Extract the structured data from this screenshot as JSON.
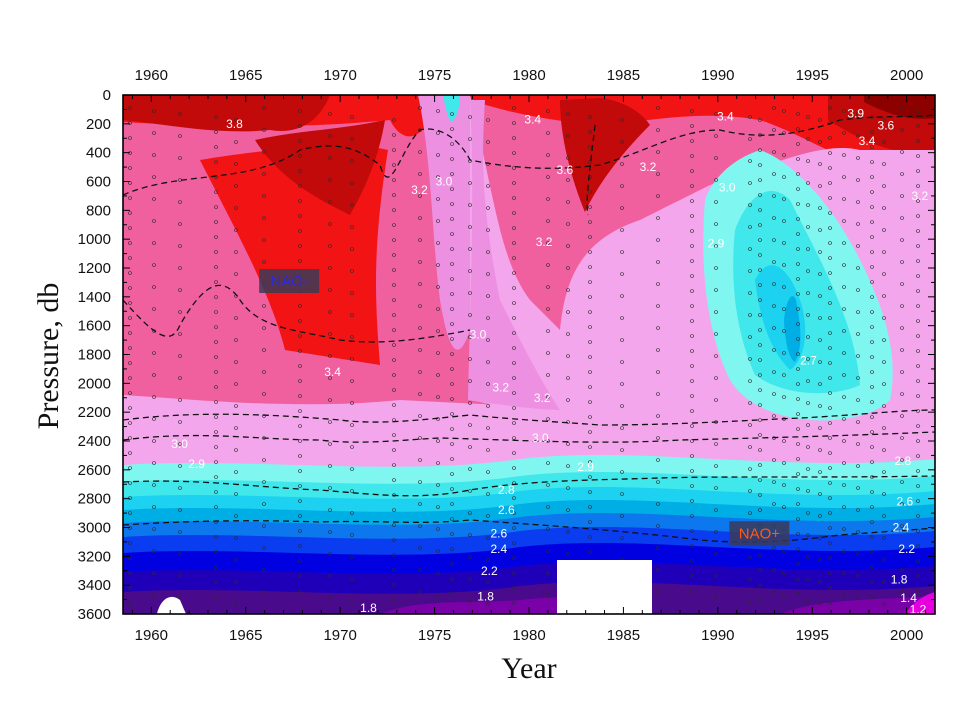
{
  "chart_data": {
    "type": "heatmap",
    "title": "",
    "xlabel": "Year",
    "ylabel": "Pressure, db",
    "xlim": [
      1958.5,
      2001.5
    ],
    "ylim": [
      0,
      3600
    ],
    "y_inverted": true,
    "x_ticks_major": [
      1960,
      1965,
      1970,
      1975,
      1980,
      1985,
      1990,
      1995,
      2000
    ],
    "x_tick_labels": [
      "1960",
      "1965",
      "1970",
      "1975",
      "1980",
      "1985",
      "1990",
      "1995",
      "2000"
    ],
    "y_ticks": [
      0,
      200,
      400,
      600,
      800,
      1000,
      1200,
      1400,
      1600,
      1800,
      2000,
      2200,
      2400,
      2600,
      2800,
      3000,
      3200,
      3400,
      3600
    ],
    "y_tick_labels": [
      "0",
      "200",
      "400",
      "600",
      "800",
      "1000",
      "1200",
      "1400",
      "1600",
      "1800",
      "2000",
      "2200",
      "2400",
      "2600",
      "2800",
      "3000",
      "3200",
      "3400",
      "3600"
    ],
    "grid": false,
    "band_colors": {
      "c18": "#4a0a8c",
      "c20": "#1f00b8",
      "c22": "#0000e0",
      "c24": "#0a3cf0",
      "c25": "#0d78ee",
      "c26": "#00aee6",
      "c27": "#1cd2f0",
      "c28": "#40e8ec",
      "c29": "#80f6f0",
      "c30": "#f4a6ec",
      "c31": "#ee90e2",
      "c32": "#f0609e",
      "c34": "#f21414",
      "c36": "#c20a0a",
      "c38": "#8c0000"
    },
    "contour_levels": [
      1.8,
      2.0,
      2.2,
      2.4,
      2.5,
      2.6,
      2.7,
      2.8,
      2.9,
      3.0,
      3.1,
      3.2,
      3.4,
      3.6,
      3.8
    ],
    "contour_labels": [
      {
        "text": "3.8",
        "x": 1964.4,
        "y": 200
      },
      {
        "text": "3.4",
        "x": 1969.6,
        "y": 1920
      },
      {
        "text": "3.2",
        "x": 1974.2,
        "y": 660
      },
      {
        "text": "3.0",
        "x": 1975.5,
        "y": 600
      },
      {
        "text": "3.0",
        "x": 1961.5,
        "y": 2420
      },
      {
        "text": "2.9",
        "x": 1962.4,
        "y": 2560
      },
      {
        "text": "3.2",
        "x": 1978.5,
        "y": 2030
      },
      {
        "text": "3.0",
        "x": 1977.3,
        "y": 1660
      },
      {
        "text": "3.2",
        "x": 1980.7,
        "y": 2100
      },
      {
        "text": "3.0",
        "x": 1980.6,
        "y": 2380
      },
      {
        "text": "3.2",
        "x": 1980.8,
        "y": 1020
      },
      {
        "text": "3.6",
        "x": 1981.9,
        "y": 520
      },
      {
        "text": "3.4",
        "x": 1980.2,
        "y": 170
      },
      {
        "text": "3.2",
        "x": 1986.3,
        "y": 500
      },
      {
        "text": "2.9",
        "x": 1983.0,
        "y": 2580
      },
      {
        "text": "2.8",
        "x": 1978.8,
        "y": 2740
      },
      {
        "text": "2.6",
        "x": 1978.8,
        "y": 2880
      },
      {
        "text": "2.6",
        "x": 1978.4,
        "y": 3040
      },
      {
        "text": "2.4",
        "x": 1978.4,
        "y": 3150
      },
      {
        "text": "2.2",
        "x": 1977.9,
        "y": 3300
      },
      {
        "text": "1.8",
        "x": 1977.7,
        "y": 3480
      },
      {
        "text": "1.8",
        "x": 1971.5,
        "y": 3560
      },
      {
        "text": "3.0",
        "x": 1990.5,
        "y": 640
      },
      {
        "text": "2.9",
        "x": 1989.9,
        "y": 1030
      },
      {
        "text": "2.7",
        "x": 1994.8,
        "y": 1840
      },
      {
        "text": "3.4",
        "x": 1990.4,
        "y": 150
      },
      {
        "text": "3.9",
        "x": 1997.3,
        "y": 130
      },
      {
        "text": "3.6",
        "x": 1998.9,
        "y": 210
      },
      {
        "text": "3.4",
        "x": 1997.9,
        "y": 320
      },
      {
        "text": "3.2",
        "x": 2000.7,
        "y": 700
      },
      {
        "text": "2.8",
        "x": 1999.8,
        "y": 2540
      },
      {
        "text": "2.6",
        "x": 1999.9,
        "y": 2820
      },
      {
        "text": "2.4",
        "x": 1999.7,
        "y": 3000
      },
      {
        "text": "2.2",
        "x": 2000.0,
        "y": 3150
      },
      {
        "text": "1.8",
        "x": 1999.6,
        "y": 3360
      },
      {
        "text": "1.4",
        "x": 2000.1,
        "y": 3490
      },
      {
        "text": "1.2",
        "x": 2000.6,
        "y": 3570
      }
    ],
    "annotations": [
      {
        "text": "NAO-",
        "x": 1967.3,
        "y": 1290,
        "color": "#2a2ad8"
      },
      {
        "text": "NAO+",
        "x": 1992.2,
        "y": 3040,
        "color": "#ff5a14"
      }
    ]
  }
}
